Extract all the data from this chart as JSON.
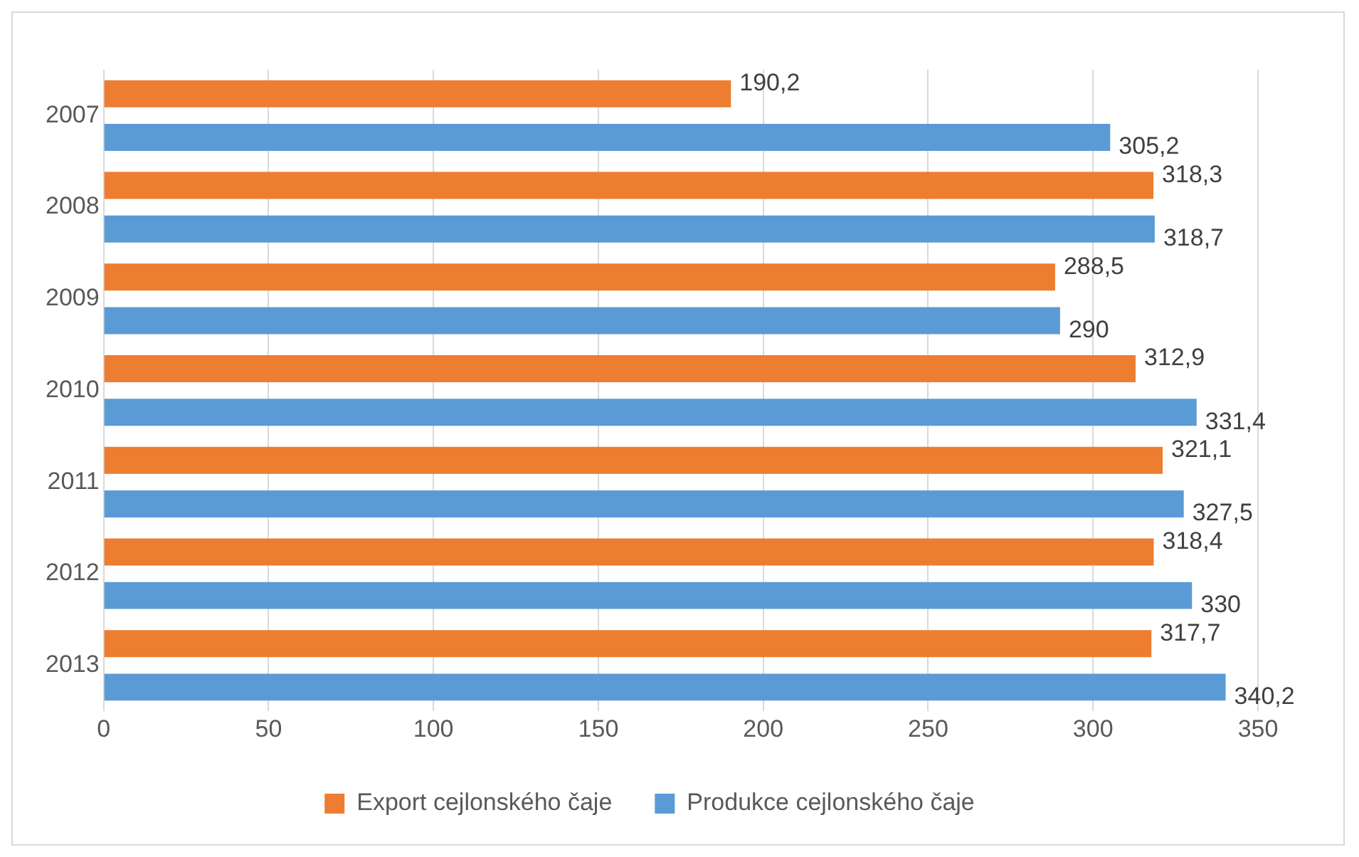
{
  "chart_data": {
    "type": "bar",
    "orientation": "horizontal",
    "categories": [
      "2007",
      "2008",
      "2009",
      "2010",
      "2011",
      "2012",
      "2013"
    ],
    "series": [
      {
        "name": "Export cejlonského čaje",
        "color": "#ed7d31",
        "values": [
          190.2,
          318.3,
          288.5,
          312.9,
          321.1,
          318.4,
          317.7
        ],
        "value_labels": [
          "190,2",
          "318,3",
          "288,5",
          "312,9",
          "321,1",
          "318,4",
          "317,7"
        ]
      },
      {
        "name": "Produkce cejlonského čaje",
        "color": "#5b9bd5",
        "values": [
          305.2,
          318.7,
          290,
          331.4,
          327.5,
          330,
          340.2
        ],
        "value_labels": [
          "305,2",
          "318,7",
          "290",
          "331,4",
          "327,5",
          "330",
          "340,2"
        ]
      }
    ],
    "xlim": [
      0,
      350
    ],
    "xticks": [
      0,
      50,
      100,
      150,
      200,
      250,
      300,
      350
    ],
    "grid": "x",
    "legend": "bottom"
  }
}
